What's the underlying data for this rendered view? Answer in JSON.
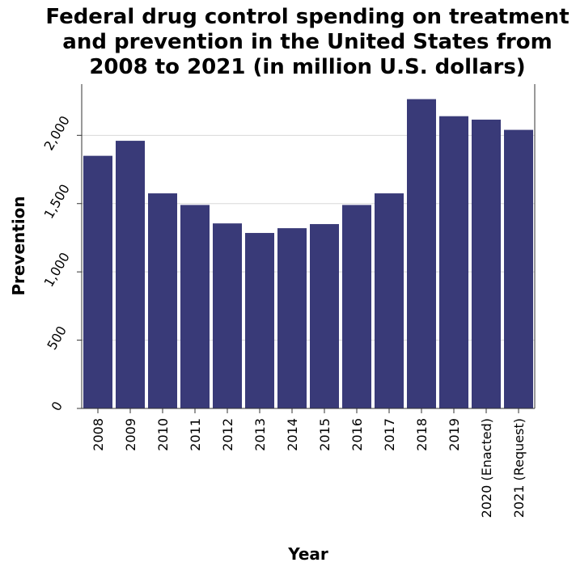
{
  "colors": {
    "bar": "#393a78",
    "background": "#ffffff",
    "grid": "#d8d8d8",
    "axis": "#333333"
  },
  "chart_data": {
    "type": "bar",
    "title_lines": [
      "Federal drug control spending on treatment",
      "and prevention in the United States from",
      "2008 to 2021 (in million U.S. dollars)"
    ],
    "xlabel": "Year",
    "ylabel": "Prevention",
    "categories": [
      "2008",
      "2009",
      "2010",
      "2011",
      "2012",
      "2013",
      "2014",
      "2015",
      "2016",
      "2017",
      "2018",
      "2019",
      "2020 (Enacted)",
      "2021 (Request)"
    ],
    "values": [
      1850,
      1960,
      1575,
      1490,
      1355,
      1285,
      1320,
      1350,
      1490,
      1575,
      2265,
      2140,
      2115,
      2040
    ],
    "ylim": [
      0,
      2375
    ],
    "yticks": [
      0,
      500,
      1000,
      1500,
      2000
    ],
    "ytick_labels": [
      "0",
      "500",
      "1,000",
      "1,500",
      "2,000"
    ],
    "grid": "horizontal",
    "legend": "none"
  }
}
